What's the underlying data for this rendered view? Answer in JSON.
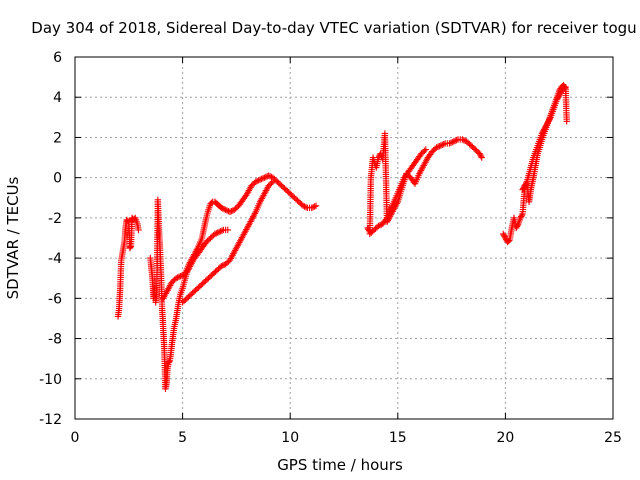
{
  "chart_data": {
    "type": "scatter",
    "title": "Day 304 of 2018, Sidereal Day-to-day VTEC variation (SDTVAR) for receiver togu",
    "xlabel": "GPS time / hours",
    "ylabel": "SDTVAR / TECUs",
    "xlim": [
      0,
      25
    ],
    "ylim": [
      -12,
      6
    ],
    "xticks": [
      "0",
      "5",
      "10",
      "15",
      "20",
      "25"
    ],
    "yticks": [
      "-12",
      "-10",
      "-8",
      "-6",
      "-4",
      "-2",
      "0",
      "2",
      "4",
      "6"
    ],
    "grid": true,
    "marker": "plus",
    "color": "#ff0000",
    "series": [
      {
        "segments": [
          {
            "x": [
              2.0,
              2.05,
              2.1,
              2.15,
              2.2,
              2.3,
              2.35,
              2.4,
              2.5,
              2.55,
              2.6,
              2.65,
              2.7,
              2.8,
              2.9,
              2.95
            ],
            "y": [
              -6.9,
              -6.5,
              -5.5,
              -4.1,
              -3.8,
              -3.2,
              -2.5,
              -2.1,
              -2.2,
              -3.5,
              -3.4,
              -2.0,
              -2.1,
              -2.0,
              -2.3,
              -2.6
            ]
          },
          {
            "x": [
              3.5,
              3.6,
              3.65,
              3.7,
              3.75,
              3.8,
              3.85,
              3.9,
              3.95,
              4.0,
              4.05,
              4.1,
              4.15,
              4.2,
              4.25,
              4.3,
              4.35,
              4.4,
              4.45,
              4.5,
              4.6,
              4.7,
              4.8,
              4.9,
              5.0,
              5.1,
              5.2,
              5.3,
              5.5,
              5.7,
              5.9,
              6.1,
              6.3,
              6.5,
              6.7,
              6.9,
              7.1
            ],
            "y": [
              -4.0,
              -5.0,
              -6.0,
              -5.5,
              -6.2,
              -5.8,
              -1.1,
              -2.5,
              -3.5,
              -4.8,
              -6.5,
              -7.5,
              -8.5,
              -10.5,
              -10.3,
              -9.5,
              -9.2,
              -9.1,
              -8.8,
              -8.3,
              -7.5,
              -7.0,
              -6.3,
              -5.8,
              -5.5,
              -5.1,
              -4.7,
              -4.5,
              -4.1,
              -3.8,
              -3.5,
              -3.2,
              -3.0,
              -2.8,
              -2.7,
              -2.6,
              -2.6
            ]
          },
          {
            "x": [
              4.1,
              4.3,
              4.5,
              4.7,
              4.9,
              5.1,
              5.3,
              5.5,
              5.7,
              5.9,
              6.0,
              6.1,
              6.2,
              6.3,
              6.4,
              6.5,
              6.6,
              6.7,
              6.8,
              7.0,
              7.2,
              7.4,
              7.6,
              7.8,
              8.0,
              8.2,
              8.4,
              8.6,
              8.8,
              9.0,
              9.2,
              9.4,
              9.6,
              9.8,
              10.0,
              10.2,
              10.4,
              10.6,
              10.8,
              11.0,
              11.2
            ],
            "y": [
              -6.0,
              -5.6,
              -5.2,
              -5.0,
              -4.9,
              -4.8,
              -4.3,
              -3.9,
              -3.5,
              -3.0,
              -2.5,
              -2.0,
              -1.6,
              -1.3,
              -1.2,
              -1.2,
              -1.3,
              -1.4,
              -1.5,
              -1.6,
              -1.7,
              -1.6,
              -1.4,
              -1.1,
              -0.8,
              -0.4,
              -0.2,
              -0.1,
              0.0,
              0.1,
              0.0,
              -0.2,
              -0.4,
              -0.6,
              -0.8,
              -1.0,
              -1.2,
              -1.4,
              -1.5,
              -1.5,
              -1.4
            ]
          },
          {
            "x": [
              5.0,
              5.2,
              5.4,
              5.6,
              5.8,
              6.0,
              6.2,
              6.4,
              6.6,
              6.8,
              7.0,
              7.2,
              7.4,
              7.6,
              7.8,
              8.0,
              8.2,
              8.4,
              8.6,
              8.8,
              9.0,
              9.2
            ],
            "y": [
              -6.2,
              -6.0,
              -5.8,
              -5.6,
              -5.4,
              -5.2,
              -5.0,
              -4.8,
              -4.6,
              -4.4,
              -4.3,
              -4.1,
              -3.7,
              -3.3,
              -2.9,
              -2.5,
              -2.1,
              -1.7,
              -1.2,
              -0.8,
              -0.4,
              -0.2
            ]
          },
          {
            "x": [
              13.6,
              13.7,
              13.75,
              13.8,
              13.85,
              13.9,
              14.0,
              14.1,
              14.2,
              14.3,
              14.4,
              14.5,
              14.6,
              14.8,
              15.0,
              15.2,
              15.4,
              15.6,
              15.8,
              16.0,
              16.2,
              16.4,
              16.6,
              16.8,
              17.0,
              17.2,
              17.4,
              17.6,
              17.8,
              18.0,
              18.2,
              18.4,
              18.6,
              18.8,
              18.9
            ],
            "y": [
              -2.5,
              -2.7,
              0.0,
              0.5,
              1.0,
              0.8,
              0.5,
              1.0,
              1.2,
              0.9,
              2.2,
              -2.2,
              -2.0,
              -1.6,
              -1.2,
              -0.5,
              0.2,
              0.0,
              -0.3,
              0.2,
              0.6,
              1.0,
              1.3,
              1.5,
              1.6,
              1.7,
              1.7,
              1.8,
              1.9,
              1.9,
              1.8,
              1.6,
              1.4,
              1.2,
              1.0
            ]
          },
          {
            "x": [
              13.7,
              13.9,
              14.1,
              14.3,
              14.5,
              14.7,
              14.9,
              15.1,
              15.3,
              15.5,
              15.7,
              15.9,
              16.1,
              16.3
            ],
            "y": [
              -2.8,
              -2.6,
              -2.4,
              -2.3,
              -2.0,
              -1.5,
              -1.0,
              -0.5,
              0.0,
              0.3,
              0.6,
              0.9,
              1.2,
              1.4
            ]
          },
          {
            "x": [
              19.9,
              20.0,
              20.1,
              20.2,
              20.3,
              20.4,
              20.5,
              20.6,
              20.7,
              20.8,
              20.9,
              21.0,
              21.1,
              21.2,
              21.3,
              21.4,
              21.5,
              21.6,
              21.7,
              21.8,
              21.9,
              22.0,
              22.1,
              22.2,
              22.3,
              22.4,
              22.5,
              22.6,
              22.7,
              22.8,
              22.85
            ],
            "y": [
              -2.8,
              -3.0,
              -3.2,
              -3.1,
              -2.5,
              -2.0,
              -2.5,
              -2.3,
              -2.0,
              -1.8,
              -0.5,
              -0.3,
              -1.2,
              -0.5,
              0.0,
              0.6,
              1.2,
              1.5,
              1.9,
              2.2,
              2.5,
              2.8,
              3.1,
              3.4,
              3.7,
              4.0,
              4.3,
              4.5,
              4.6,
              4.4,
              2.8
            ]
          },
          {
            "x": [
              20.8,
              20.9,
              21.0,
              21.1,
              21.2,
              21.3,
              21.4,
              21.5,
              21.6,
              21.7,
              21.8,
              21.9,
              22.0,
              22.1,
              22.2,
              22.3,
              22.4,
              22.5,
              22.6,
              22.7,
              22.8
            ],
            "y": [
              -0.6,
              -0.4,
              -0.2,
              0.2,
              0.6,
              1.0,
              1.3,
              1.6,
              1.9,
              2.2,
              2.4,
              2.6,
              2.8,
              3.0,
              3.3,
              3.6,
              3.9,
              4.1,
              4.3,
              4.5,
              4.5
            ]
          }
        ]
      }
    ]
  }
}
